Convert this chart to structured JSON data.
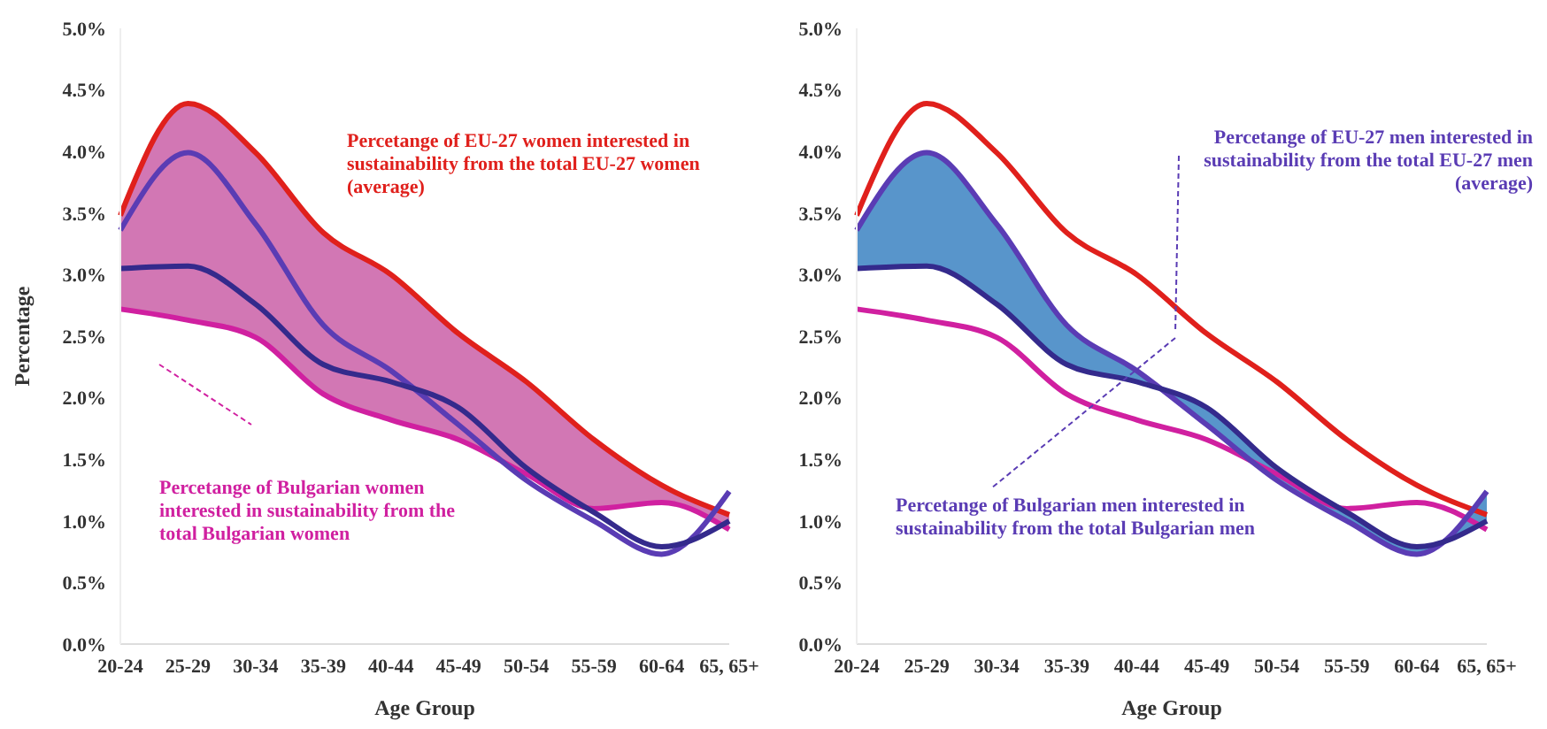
{
  "chart_data": [
    {
      "type": "line",
      "xlabel": "Age Group",
      "ylabel": "Percentage",
      "categories": [
        "20-24",
        "25-29",
        "30-34",
        "35-39",
        "40-44",
        "45-49",
        "50-54",
        "55-59",
        "60-64",
        "65, 65+"
      ],
      "ylim": [
        0,
        5
      ],
      "yticks": [
        {
          "value": 0,
          "label": "0.0%"
        },
        {
          "value": 0.5,
          "label": "0.5%"
        },
        {
          "value": 1,
          "label": "1.0%"
        },
        {
          "value": 1.5,
          "label": "1.5%"
        },
        {
          "value": 2,
          "label": "2.0%"
        },
        {
          "value": 2.5,
          "label": "2.5%"
        },
        {
          "value": 3,
          "label": "3.0%"
        },
        {
          "value": 3.5,
          "label": "3.5%"
        },
        {
          "value": 4,
          "label": "4.0%"
        },
        {
          "value": 4.5,
          "label": "4.5%"
        },
        {
          "value": 5,
          "label": "5.0%"
        }
      ],
      "series": [
        {
          "color": "#e0201c",
          "values": [
            3.48,
            4.39,
            3.99,
            3.34,
            3.0,
            2.52,
            2.13,
            1.66,
            1.29,
            1.05
          ],
          "lower": [
            2.72,
            2.63,
            2.49,
            2.03,
            1.82,
            1.66,
            1.38,
            1.1,
            1.15,
            0.93
          ],
          "upper": [
            3.48,
            4.39,
            3.99,
            3.34,
            3.0,
            2.52,
            2.13,
            1.66,
            1.29,
            1.05
          ]
        },
        {
          "color": "#d020a0",
          "values": [
            2.72,
            2.63,
            2.49,
            2.03,
            1.82,
            1.66,
            1.38,
            1.1,
            1.15,
            0.93
          ]
        },
        {
          "color": "#5a3cb4",
          "values": [
            3.36,
            3.99,
            3.41,
            2.59,
            2.22,
            1.78,
            1.33,
            1.0,
            0.73,
            1.24
          ]
        },
        {
          "color": "#342a8c",
          "values": [
            3.05,
            3.07,
            2.76,
            2.27,
            2.13,
            1.92,
            1.43,
            1.07,
            0.79,
            1.0
          ]
        }
      ],
      "annotations": [
        "Percetange of EU-27 women interested in sustainability from the total EU-27 women (average)",
        "Percetange of Bulgarian women interested in sustainability from the total Bulgarian women"
      ],
      "grid": false,
      "legend": false,
      "marker": "none",
      "line_style": "solid"
    },
    {
      "type": "line",
      "xlabel": "Age Group",
      "categories": [
        "20-24",
        "25-29",
        "30-34",
        "35-39",
        "40-44",
        "45-49",
        "50-54",
        "55-59",
        "60-64",
        "65, 65+"
      ],
      "ylim": [
        0,
        5
      ],
      "yticks": [
        {
          "value": 0,
          "label": "0.0%"
        },
        {
          "value": 0.5,
          "label": "0.5%"
        },
        {
          "value": 1,
          "label": "1.0%"
        },
        {
          "value": 1.5,
          "label": "1.5%"
        },
        {
          "value": 2,
          "label": "2.0%"
        },
        {
          "value": 2.5,
          "label": "2.5%"
        },
        {
          "value": 3,
          "label": "3.0%"
        },
        {
          "value": 3.5,
          "label": "3.5%"
        },
        {
          "value": 4,
          "label": "4.0%"
        },
        {
          "value": 4.5,
          "label": "4.5%"
        },
        {
          "value": 5,
          "label": "5.0%"
        }
      ],
      "series": [
        {
          "color": "#e0201c",
          "values": [
            3.48,
            4.39,
            3.99,
            3.34,
            3.0,
            2.52,
            2.13,
            1.66,
            1.29,
            1.05
          ]
        },
        {
          "color": "#d020a0",
          "values": [
            2.72,
            2.63,
            2.49,
            2.03,
            1.82,
            1.66,
            1.38,
            1.1,
            1.15,
            0.93
          ]
        },
        {
          "color": "#5a3cb4",
          "values": [
            3.36,
            3.99,
            3.41,
            2.59,
            2.22,
            1.78,
            1.33,
            1.0,
            0.73,
            1.24
          ],
          "lower": [
            3.05,
            3.07,
            2.76,
            2.27,
            2.13,
            1.92,
            1.43,
            1.07,
            0.79,
            1.0
          ],
          "upper": [
            3.36,
            3.99,
            3.41,
            2.59,
            2.22,
            1.78,
            1.33,
            1.0,
            0.73,
            1.24
          ]
        },
        {
          "color": "#342a8c",
          "values": [
            3.05,
            3.07,
            2.76,
            2.27,
            2.13,
            1.92,
            1.43,
            1.07,
            0.79,
            1.0
          ]
        }
      ],
      "annotations": [
        "Percetange of EU-27 men interested in sustainability from the total EU-27 men (average)",
        "Percetange of Bulgarian men interested in sustainability from the total Bulgarian men"
      ],
      "grid": false,
      "legend": false,
      "marker": "none",
      "line_style": "solid"
    }
  ]
}
